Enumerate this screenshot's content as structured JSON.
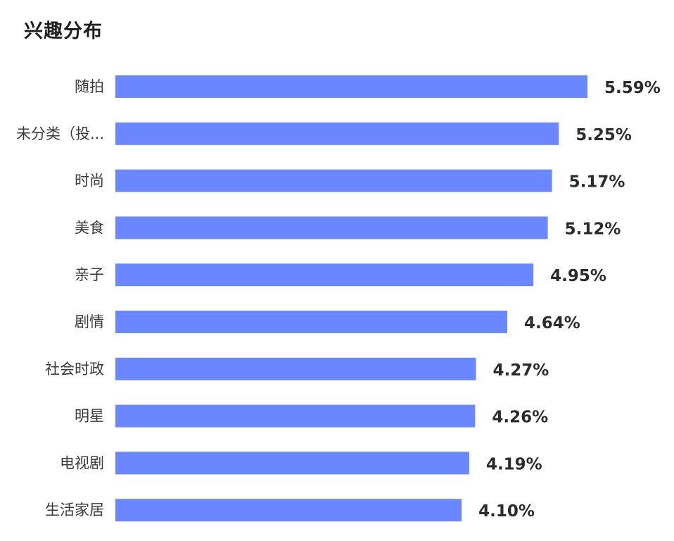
{
  "title": "兴趣分布",
  "chart_data": {
    "type": "bar",
    "orientation": "horizontal",
    "title": "兴趣分布",
    "categories": [
      "随拍",
      "未分类（投...",
      "时尚",
      "美食",
      "亲子",
      "剧情",
      "社会时政",
      "明星",
      "电视剧",
      "生活家居"
    ],
    "values": [
      5.59,
      5.25,
      5.17,
      5.12,
      4.95,
      4.64,
      4.27,
      4.26,
      4.19,
      4.1
    ],
    "value_labels": [
      "5.59%",
      "5.25%",
      "5.17%",
      "5.12%",
      "4.95%",
      "4.64%",
      "4.27%",
      "4.26%",
      "4.19%",
      "4.10%"
    ],
    "unit": "%",
    "xlim": [
      0,
      5.59
    ],
    "grid": false,
    "bar_color": "#6b87ff"
  }
}
